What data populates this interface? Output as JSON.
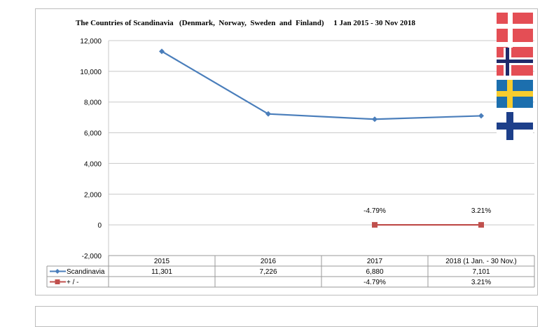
{
  "chart_data": {
    "type": "line",
    "title": "The Countries of Scandinavia   (Denmark,  Norway,  Sweden  and  Finland)     1 Jan 2015 - 30 Nov 2018",
    "categories": [
      "2015",
      "2016",
      "2017",
      "2018 (1 Jan. - 30 Nov.)"
    ],
    "y_ticks": [
      "12,000",
      "10,000",
      "8,000",
      "6,000",
      "4,000",
      "2,000",
      "0",
      "-2,000"
    ],
    "ylim": [
      -2000,
      12000
    ],
    "grid": true,
    "series": [
      {
        "name": "Scandinavia",
        "color": "#4a7ebb",
        "marker": "diamond",
        "values": [
          11301,
          7226,
          6880,
          7101
        ],
        "table_values": [
          "11,301",
          "7,226",
          "6,880",
          "7,101"
        ]
      },
      {
        "name": "+ / -",
        "color": "#c0504d",
        "marker": "square",
        "values": [
          null,
          null,
          0,
          0
        ],
        "table_values": [
          "",
          "",
          "-4.79%",
          "3.21%"
        ],
        "data_labels": [
          "",
          "",
          "-4.79%",
          "3.21%"
        ]
      }
    ],
    "flags": [
      "denmark-flag",
      "denmark-flag",
      "norway-flag",
      "sweden-flag",
      "finland-flag"
    ]
  }
}
